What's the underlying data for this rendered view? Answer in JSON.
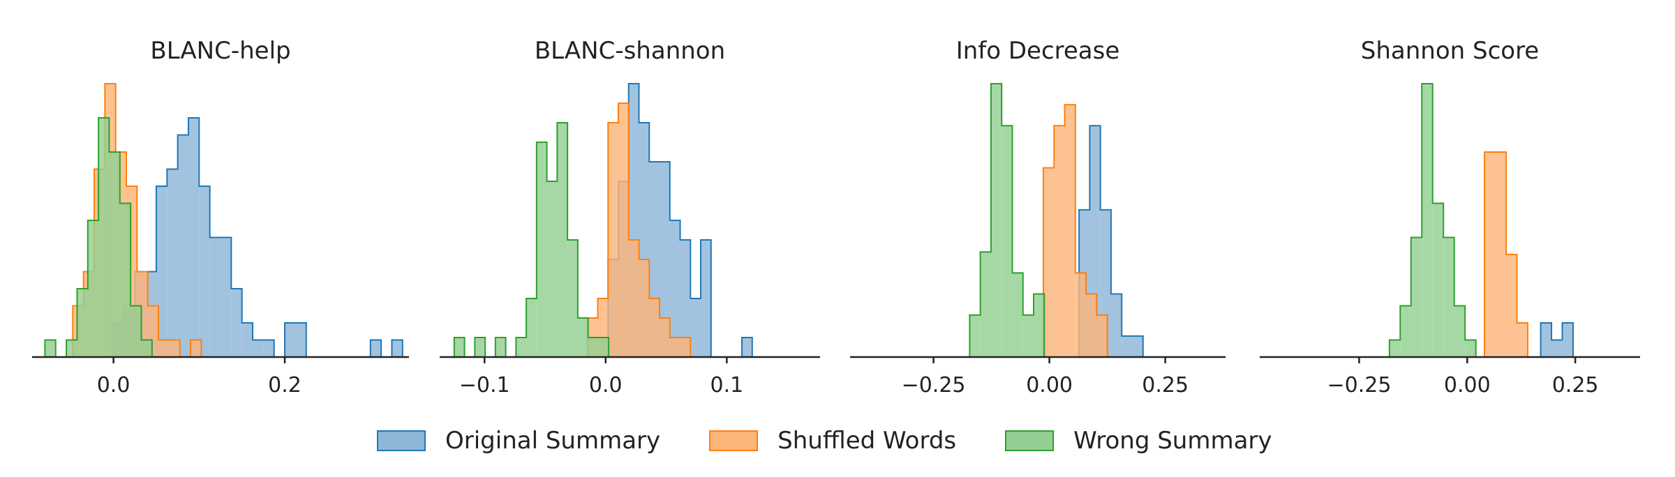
{
  "chart_data": [
    {
      "type": "histogram",
      "title": "BLANC-help",
      "xlim": [
        -0.095,
        0.345
      ],
      "xticks": [
        0.0,
        0.2
      ],
      "xtick_labels": [
        "0.0",
        "0.2"
      ],
      "bin_width": 0.0125,
      "series": [
        {
          "name": "Original Summary",
          "start": -0.0125,
          "counts": [
            0,
            2,
            3,
            5,
            5,
            10,
            11,
            13,
            14,
            10,
            7,
            7,
            4,
            2,
            1,
            1,
            0,
            2,
            2,
            0,
            0,
            0,
            0,
            0,
            0,
            1,
            0,
            1
          ]
        },
        {
          "name": "Shuffled Words",
          "start": -0.0475,
          "counts": [
            3,
            5,
            11,
            16,
            12,
            10,
            5,
            3,
            1,
            1,
            0,
            1
          ]
        },
        {
          "name": "Wrong Summary",
          "start": -0.08,
          "counts": [
            1,
            0,
            1,
            4,
            8,
            14,
            12,
            9,
            3,
            1
          ]
        }
      ]
    },
    {
      "type": "histogram",
      "title": "BLANC-shannon",
      "xlim": [
        -0.137,
        0.177
      ],
      "xticks": [
        -0.1,
        0.0,
        0.1
      ],
      "xtick_labels": [
        "−0.1",
        "0.0",
        "0.1"
      ],
      "bin_width": 0.0085,
      "series": [
        {
          "name": "Original Summary",
          "start": 0.002,
          "counts": [
            5,
            9,
            14,
            12,
            10,
            10,
            7,
            6,
            3,
            6,
            0,
            0,
            0,
            1,
            0
          ]
        },
        {
          "name": "Shuffled Words",
          "start": -0.015,
          "counts": [
            2,
            3,
            12,
            13,
            6,
            5,
            3,
            2,
            1,
            1,
            0
          ]
        },
        {
          "name": "Wrong Summary",
          "start": -0.125,
          "counts": [
            1,
            0,
            1,
            0,
            1,
            0,
            1,
            3,
            11,
            9,
            12,
            6,
            2,
            1,
            1
          ]
        }
      ]
    },
    {
      "type": "histogram",
      "title": "Info Decrease",
      "xlim": [
        -0.43,
        0.38
      ],
      "xticks": [
        -0.25,
        0.0,
        0.25
      ],
      "xtick_labels": [
        "−0.25",
        "0.00",
        "0.25"
      ],
      "bin_width": 0.023,
      "series": [
        {
          "name": "Original Summary",
          "start": 0.064,
          "counts": [
            7,
            11,
            7,
            3,
            1,
            1,
            0,
            0
          ]
        },
        {
          "name": "Shuffled Words",
          "start": -0.013,
          "counts": [
            9,
            11,
            12,
            4,
            3,
            2
          ]
        },
        {
          "name": "Wrong Summary",
          "start": -0.172,
          "counts": [
            2,
            5,
            13,
            11,
            4,
            2,
            3
          ]
        }
      ]
    },
    {
      "type": "histogram",
      "title": "Shannon Score",
      "xlim": [
        -0.48,
        0.4
      ],
      "xticks": [
        -0.25,
        0.0,
        0.25
      ],
      "xtick_labels": [
        "−0.25",
        "0.00",
        "0.25"
      ],
      "bin_width": 0.025,
      "series": [
        {
          "name": "Original Summary",
          "start": 0.17,
          "counts": [
            2,
            1,
            2,
            0,
            0,
            0,
            0,
            0
          ]
        },
        {
          "name": "Shuffled Words",
          "start": 0.04,
          "counts": [
            12,
            12,
            6,
            2
          ]
        },
        {
          "name": "Wrong Summary",
          "start": -0.18,
          "counts": [
            1,
            3,
            7,
            16,
            9,
            7,
            3,
            1
          ]
        }
      ]
    }
  ],
  "legend": {
    "items": [
      {
        "label": "Original Summary",
        "fill": "#8db6d8",
        "stroke": "#1f77b4"
      },
      {
        "label": "Shuffled Words",
        "fill": "#fdb57a",
        "stroke": "#ff7f0e"
      },
      {
        "label": "Wrong Summary",
        "fill": "#93cf93",
        "stroke": "#2ca02c"
      }
    ]
  },
  "colors": {
    "original_fill": "#8db6d8",
    "original_stroke": "#1f77b4",
    "shuffled_fill": "#fdb57a",
    "shuffled_stroke": "#ff7f0e",
    "wrong_fill": "#93cf93",
    "wrong_stroke": "#2ca02c",
    "axis": "#222222",
    "text": "#222222"
  }
}
